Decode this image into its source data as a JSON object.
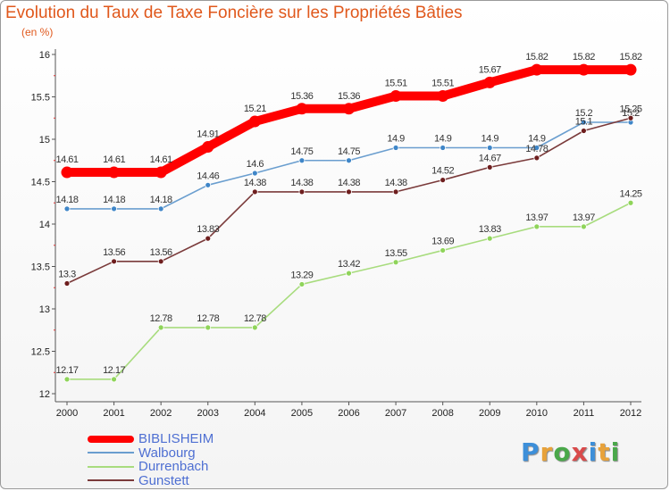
{
  "title": "Evolution du Taux de Taxe Foncière sur les Propriétés Bâties",
  "subtitle": "(en %)",
  "logo": {
    "text": "Proxiti",
    "colors": [
      "#3d8fd9",
      "#e8a23a",
      "#4aa84a",
      "#d94a4a",
      "#3d8fd9",
      "#e8a23a",
      "#4aa84a"
    ]
  },
  "chart_data": {
    "type": "line",
    "title": "Evolution du Taux de Taxe Foncière sur les Propriétés Bâties",
    "ylabel": "(en %)",
    "xlabel": "",
    "ylim": [
      12,
      16
    ],
    "yticks": [
      12,
      12.5,
      13,
      13.5,
      14,
      14.5,
      15,
      15.5,
      16
    ],
    "yticklabels": [
      "12",
      "12.5",
      "13",
      "13.5",
      "14",
      "14.5",
      "15",
      "15.5",
      "16"
    ],
    "categories": [
      "2000",
      "2001",
      "2002",
      "2003",
      "2004",
      "2005",
      "2006",
      "2007",
      "2008",
      "2009",
      "2010",
      "2011",
      "2012"
    ],
    "grid": false,
    "legend_position": "bottom-left",
    "series": [
      {
        "name": "BIBLISHEIM",
        "color": "#ff0000",
        "marker": false,
        "emphasis": true,
        "values": [
          14.61,
          14.61,
          14.61,
          14.91,
          15.21,
          15.36,
          15.36,
          15.51,
          15.51,
          15.67,
          15.82,
          15.82,
          15.82
        ],
        "labels": [
          "14.61",
          "14.61",
          "14.61",
          "14.91",
          "15.21",
          "15.36",
          "15.36",
          "15.51",
          "15.51",
          "15.67",
          "15.82",
          "15.82",
          "15.82"
        ]
      },
      {
        "name": "Walbourg",
        "color": "#6a9ecf",
        "marker": true,
        "marker_color": "#3f86c8",
        "values": [
          14.18,
          14.18,
          14.18,
          14.46,
          14.6,
          14.75,
          14.75,
          14.9,
          14.9,
          14.9,
          14.9,
          15.2,
          15.2
        ],
        "labels": [
          "14.18",
          "14.18",
          "14.18",
          "14.46",
          "14.6",
          "14.75",
          "14.75",
          "14.9",
          "14.9",
          "14.9",
          "14.9",
          "15.2",
          "15.2"
        ]
      },
      {
        "name": "Durrenbach",
        "color": "#a8dc7e",
        "marker": true,
        "marker_color": "#8fd45a",
        "values": [
          12.17,
          12.17,
          12.78,
          12.78,
          12.78,
          13.29,
          13.42,
          13.55,
          13.69,
          13.83,
          13.97,
          13.97,
          14.25
        ],
        "labels": [
          "12.17",
          "12.17",
          "12.78",
          "12.78",
          "12.78",
          "13.29",
          "13.42",
          "13.55",
          "13.69",
          "13.83",
          "13.97",
          "13.97",
          "14.25"
        ]
      },
      {
        "name": "Gunstett",
        "color": "#7a3a3a",
        "marker": true,
        "marker_color": "#6e1e1e",
        "values": [
          13.3,
          13.56,
          13.56,
          13.83,
          14.38,
          14.38,
          14.38,
          14.38,
          14.52,
          14.67,
          14.78,
          15.1,
          15.25
        ],
        "labels": [
          "13.3",
          "13.56",
          "13.56",
          "13.83",
          "14.38",
          "14.38",
          "14.38",
          "14.38",
          "14.52",
          "14.67",
          "14.78",
          "15.1",
          "15.25"
        ]
      }
    ]
  }
}
